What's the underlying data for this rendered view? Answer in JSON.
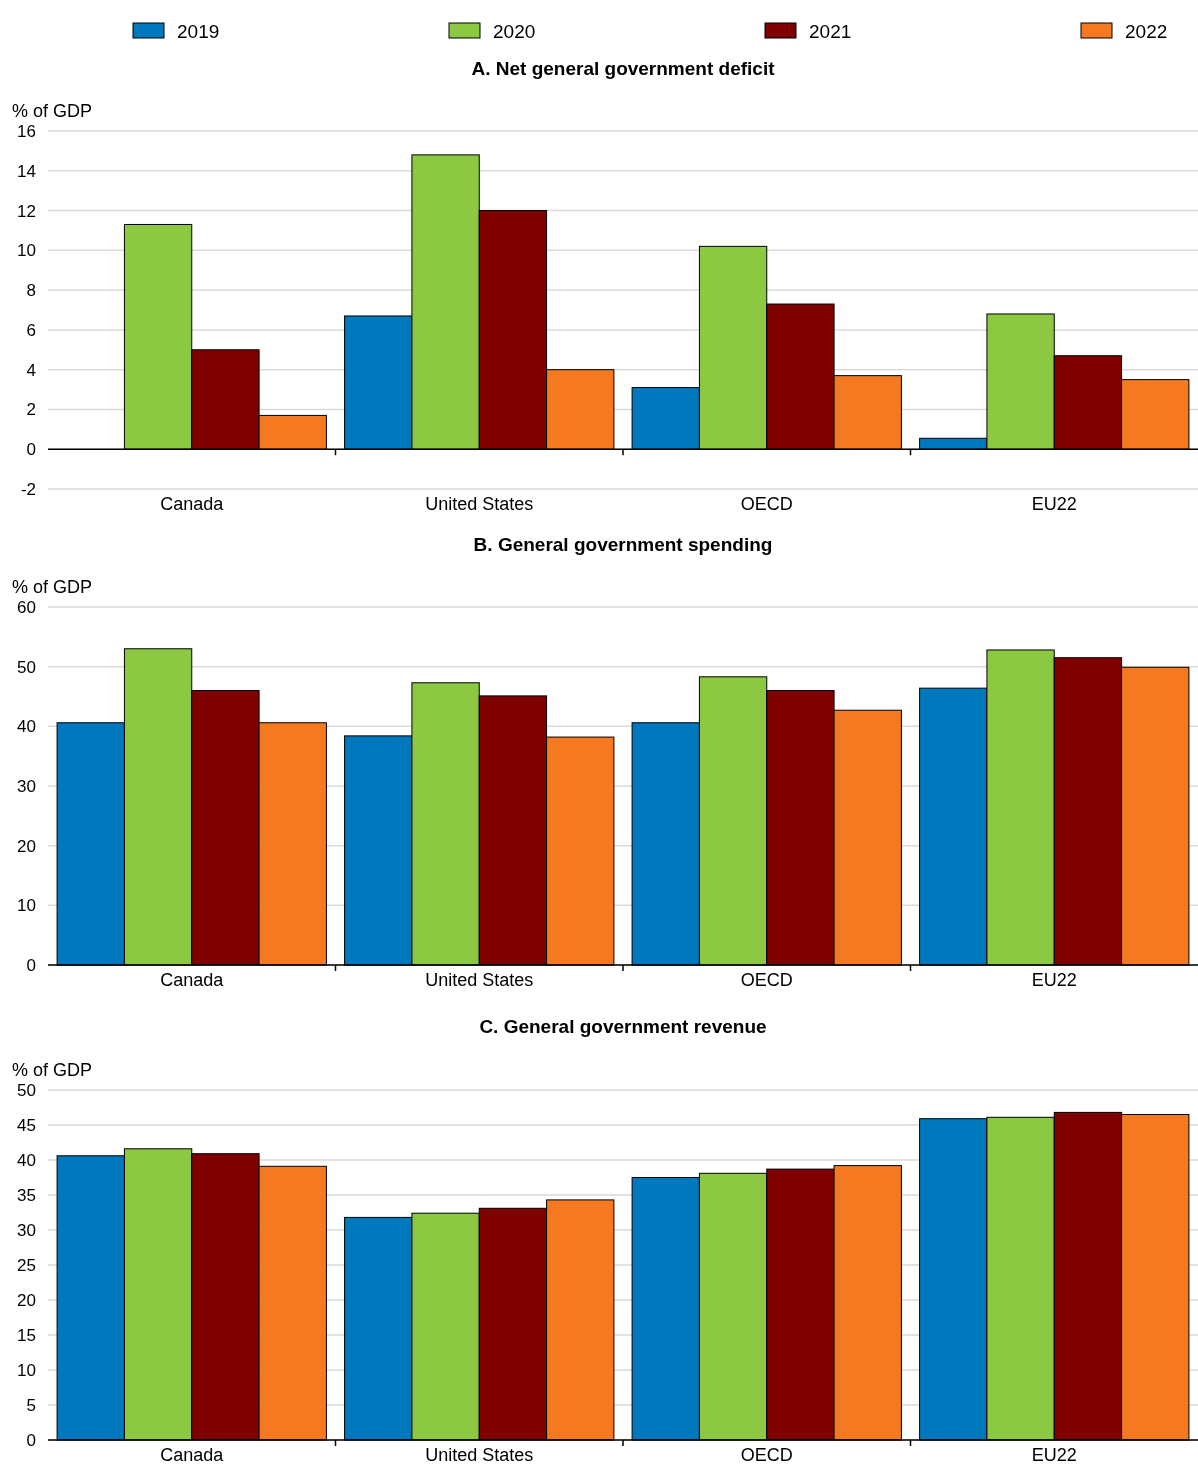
{
  "chart_data": [
    {
      "type": "bar",
      "title": "A. Net general government deficit",
      "ylabel": "% of GDP",
      "categories": [
        "Canada",
        "United States",
        "OECD",
        "EU22"
      ],
      "ylim": [
        -2,
        16
      ],
      "yticks": [
        -2,
        0,
        2,
        4,
        6,
        8,
        10,
        12,
        14,
        16
      ],
      "grid": "y",
      "legend": "top",
      "series": [
        {
          "name": "2019",
          "color": "#0078be",
          "values": [
            0,
            6.7,
            3.1,
            0.55
          ]
        },
        {
          "name": "2020",
          "color": "#8cc841",
          "values": [
            11.3,
            14.8,
            10.2,
            6.8
          ]
        },
        {
          "name": "2021",
          "color": "#7f0000",
          "values": [
            5.0,
            12.0,
            7.3,
            4.7
          ]
        },
        {
          "name": "2022",
          "color": "#f47920",
          "values": [
            1.7,
            4.0,
            3.7,
            3.5
          ]
        }
      ]
    },
    {
      "type": "bar",
      "title": "B. General government spending",
      "ylabel": "% of GDP",
      "categories": [
        "Canada",
        "United States",
        "OECD",
        "EU22"
      ],
      "ylim": [
        0,
        60
      ],
      "yticks": [
        0,
        10,
        20,
        30,
        40,
        50,
        60
      ],
      "grid": "y",
      "series": [
        {
          "color": "#0078be",
          "values": [
            40.6,
            38.4,
            40.6,
            46.4
          ]
        },
        {
          "color": "#8cc841",
          "values": [
            53.0,
            47.3,
            48.3,
            52.8
          ]
        },
        {
          "color": "#7f0000",
          "values": [
            46.0,
            45.1,
            46.0,
            51.5
          ]
        },
        {
          "color": "#f47920",
          "values": [
            40.6,
            38.2,
            42.7,
            49.9
          ]
        }
      ]
    },
    {
      "type": "bar",
      "title": "C. General government revenue",
      "ylabel": "% of GDP",
      "categories": [
        "Canada",
        "United States",
        "OECD",
        "EU22"
      ],
      "ylim": [
        0,
        50
      ],
      "yticks": [
        0,
        5,
        10,
        15,
        20,
        25,
        30,
        35,
        40,
        45,
        50
      ],
      "grid": "y",
      "series": [
        {
          "color": "#0078be",
          "values": [
            40.6,
            31.8,
            37.5,
            45.9
          ]
        },
        {
          "color": "#8cc841",
          "values": [
            41.6,
            32.4,
            38.1,
            46.1
          ]
        },
        {
          "color": "#7f0000",
          "values": [
            40.9,
            33.1,
            38.7,
            46.8
          ]
        },
        {
          "color": "#f47920",
          "values": [
            39.1,
            34.3,
            39.2,
            46.5
          ]
        }
      ]
    }
  ]
}
